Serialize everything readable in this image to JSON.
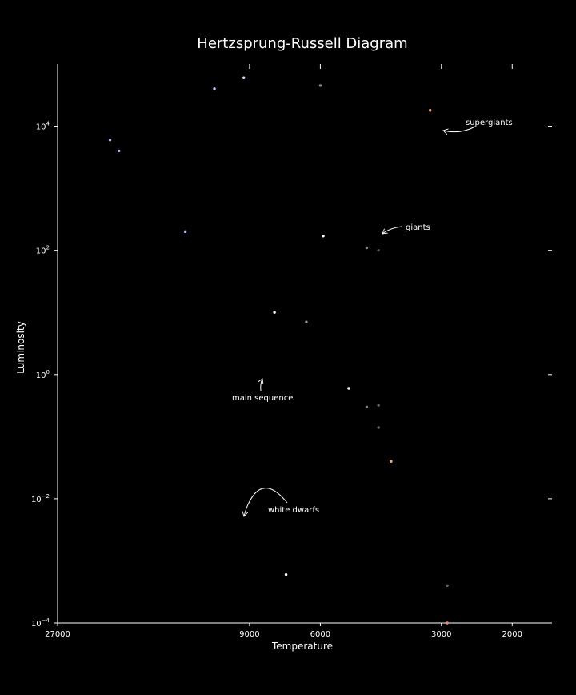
{
  "chart_data": {
    "type": "scatter",
    "title": "Hertzsprung-Russell Diagram",
    "xlabel": "Temperature",
    "ylabel": "Luminosity",
    "x_scale": "log",
    "x_inverted": true,
    "xlim": [
      27000,
      1600
    ],
    "x_ticks_bottom": [
      {
        "value": 27000,
        "label": "27000"
      },
      {
        "value": 9000,
        "label": "9000"
      },
      {
        "value": 6000,
        "label": "6000"
      },
      {
        "value": 3000,
        "label": "3000"
      },
      {
        "value": 2000,
        "label": "2000"
      }
    ],
    "x_ticks_top": [
      9000,
      6000,
      3000,
      2000
    ],
    "y_scale": "log",
    "ylim": [
      0.0001,
      100000
    ],
    "y_ticks": [
      {
        "value": 0.0001,
        "base": "10",
        "exp": "−4"
      },
      {
        "value": 0.01,
        "base": "10",
        "exp": "−2"
      },
      {
        "value": 1,
        "base": "10",
        "exp": "0"
      },
      {
        "value": 100,
        "base": "10",
        "exp": "2"
      },
      {
        "value": 10000,
        "base": "10",
        "exp": "4"
      }
    ],
    "grid": false,
    "points": [
      {
        "x": 20000,
        "y": 6000,
        "color": "#aabbff"
      },
      {
        "x": 19000,
        "y": 4000,
        "color": "#aabbff"
      },
      {
        "x": 13000,
        "y": 200,
        "color": "#aabbff"
      },
      {
        "x": 11000,
        "y": 40000,
        "color": "#bbccff"
      },
      {
        "x": 9300,
        "y": 60000,
        "color": "#ccddff"
      },
      {
        "x": 7800,
        "y": 10,
        "color": "#f4f4ff"
      },
      {
        "x": 7300,
        "y": 0.0006,
        "color": "#ffffff"
      },
      {
        "x": 6500,
        "y": 7,
        "color": "#999999"
      },
      {
        "x": 6000,
        "y": 45000,
        "color": "#888888"
      },
      {
        "x": 5900,
        "y": 170,
        "color": "#ffffff"
      },
      {
        "x": 5100,
        "y": 0.6,
        "color": "#ffffee"
      },
      {
        "x": 4600,
        "y": 110,
        "color": "#888888"
      },
      {
        "x": 4600,
        "y": 0.3,
        "color": "#888888"
      },
      {
        "x": 4300,
        "y": 100,
        "color": "#555555"
      },
      {
        "x": 4300,
        "y": 0.32,
        "color": "#666666"
      },
      {
        "x": 4300,
        "y": 0.14,
        "color": "#666666"
      },
      {
        "x": 4000,
        "y": 0.04,
        "color": "#ffaa66"
      },
      {
        "x": 3200,
        "y": 18000,
        "color": "#ffaa77"
      },
      {
        "x": 2900,
        "y": 0.0004,
        "color": "#666666"
      },
      {
        "x": 2900,
        "y": 0.0001,
        "color": "#ff8855"
      }
    ],
    "annotations": [
      {
        "text": "supergiants",
        "x": 2850,
        "y": 10000
      },
      {
        "text": "giants",
        "x": 3950,
        "y": 220
      },
      {
        "text": "main sequence",
        "x": 7800,
        "y": 1
      },
      {
        "text": "white dwarfs",
        "x": 9000,
        "y": 0.0045
      }
    ]
  }
}
